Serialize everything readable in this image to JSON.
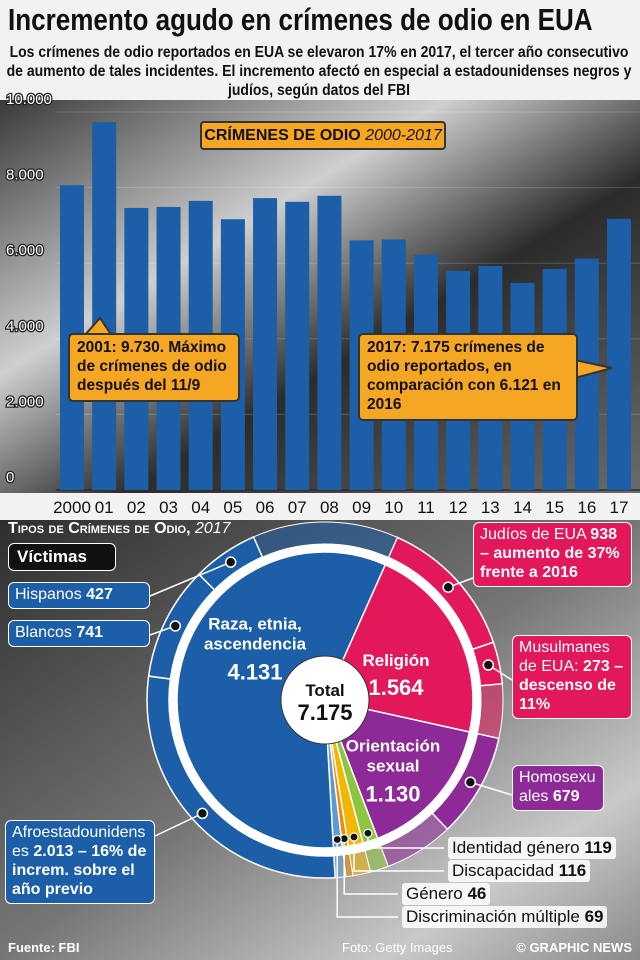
{
  "header": {
    "title": "Incremento agudo en crímenes de odio en EUA",
    "subtitle": "Los crímenes de odio reportados en EUA se elevaron 17% en 2017, el tercer año consecutivo de aumento de tales incidentes. El incremento afectó en especial a estadounidenses negros y judíos, según datos del FBI"
  },
  "chart_data": [
    {
      "type": "bar",
      "title": "CRÍMENES DE ODIO",
      "period": "2000-2017",
      "categories": [
        "2000",
        "01",
        "02",
        "03",
        "04",
        "05",
        "06",
        "07",
        "08",
        "09",
        "10",
        "11",
        "12",
        "13",
        "14",
        "15",
        "16",
        "17"
      ],
      "values": [
        8063,
        9730,
        7462,
        7489,
        7649,
        7163,
        7722,
        7624,
        7783,
        6604,
        6628,
        6222,
        5796,
        5928,
        5479,
        5850,
        6121,
        7175
      ],
      "color": "#1d5ea8",
      "ylim": [
        0,
        10000
      ],
      "yticks": [
        0,
        {
          "value": 2000,
          "label": "2.000"
        },
        {
          "value": 4000,
          "label": "4.000"
        },
        {
          "value": 6000,
          "label": "6.000"
        },
        {
          "value": 8000,
          "label": "8.000"
        },
        {
          "value": 10000,
          "label": "10.000"
        }
      ],
      "grid": true,
      "annotations": [
        "2001: 9.730. Máximo de crímenes de odio después del 11/9",
        "2017: 7.175 crímenes de odio reportados, en comparación con 6.121 en 2016"
      ]
    },
    {
      "type": "donut",
      "title": "Tipos de Crímenes de Odio,",
      "period": "2017",
      "legend_title": "Víctimas",
      "center_label": "Total",
      "center_value": "7.175",
      "categories": [
        "Religión",
        "Orientación sexual",
        "Identidad género",
        "Discapacidad",
        "Género",
        "Discriminación múltiple",
        "Raza, etnia, ascendencia"
      ],
      "values": [
        1564,
        1130,
        119,
        116,
        46,
        69,
        4131
      ],
      "value_labels": [
        "1.564",
        "1.130",
        "119",
        "116",
        "46",
        "69",
        "4.131"
      ],
      "colors": [
        "#e2185b",
        "#8e2a97",
        "#8cc63f",
        "#f2b705",
        "#f08a00",
        "#5b9bd5",
        "#1d5ea8"
      ],
      "victims": [
        [
          {
            "name": "Judíos de EUA",
            "value": 938,
            "note": "– aumento de 37% frente a 2016"
          },
          {
            "name": "Musulmanes de EUA:",
            "value": 273,
            "note": "– descenso de 11%"
          }
        ],
        [
          {
            "name": "Homosexuales",
            "value": 679
          }
        ],
        [],
        [],
        [],
        [],
        [
          {
            "name": "Afroestadounidenses",
            "value": 2013,
            "value_label": "2.013",
            "note": "– 16% de increm. sobre el año previo"
          },
          {
            "name": "Blancos",
            "value": 741
          },
          {
            "name": "Hispanos",
            "value": 427
          }
        ]
      ]
    }
  ],
  "footer": {
    "source": "Fuente: FBI",
    "photo": "Foto: Getty Images",
    "credit": "© GRAPHIC NEWS"
  }
}
